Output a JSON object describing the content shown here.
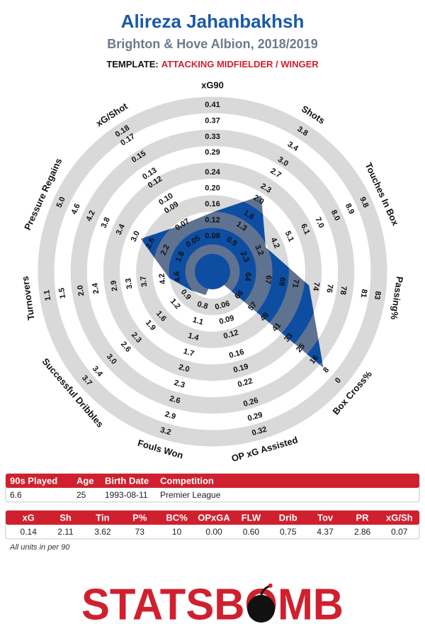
{
  "header": {
    "title": "Alireza Jahanbakhsh",
    "subtitle": "Brighton & Hove Albion, 2018/2019",
    "template_label": "TEMPLATE:",
    "template": "ATTACKING MIDFIELDER / WINGER"
  },
  "chart_data": {
    "type": "radar",
    "axes": [
      {
        "name": "xG90",
        "value": 0.14,
        "ticks": [
          0.08,
          0.12,
          0.16,
          {
            "value": 0.2,
            "label": "0.20"
          },
          0.24,
          0.29,
          0.33,
          0.37,
          0.41
        ]
      },
      {
        "name": "Shots",
        "value": 2.11,
        "ticks": [
          0.9,
          1.3,
          1.6,
          {
            "value": 2,
            "label": "2.0"
          },
          2.3,
          2.7,
          {
            "value": 3,
            "label": "3.0"
          },
          3.4,
          3.8
        ]
      },
      {
        "name": "Touches In Box",
        "value": 3.62,
        "ticks": [
          2.3,
          3.2,
          4.2,
          5.1,
          6.1,
          {
            "value": 7,
            "label": "7.0"
          },
          {
            "value": 8,
            "label": "8.0"
          },
          8.9,
          9.8
        ]
      },
      {
        "name": "Passing%",
        "value": 73,
        "ticks": [
          64,
          67,
          69,
          71,
          74,
          76,
          78,
          81,
          83
        ]
      },
      {
        "name": "Box Cross%",
        "value": 10,
        "ticks": [
          66,
          57,
          49,
          41,
          33,
          25,
          16,
          8,
          0
        ]
      },
      {
        "name": "OP xG Assisted",
        "value": 0,
        "ticks": [
          0.06,
          0.09,
          0.12,
          0.16,
          0.19,
          0.22,
          0.26,
          0.29,
          0.32
        ]
      },
      {
        "name": "Fouls Won",
        "value": 0.6,
        "ticks": [
          0.8,
          1.1,
          1.4,
          1.7,
          {
            "value": 2,
            "label": "2.0"
          },
          2.3,
          2.6,
          2.9,
          3.2
        ]
      },
      {
        "name": "Successful Dribbles",
        "value": 0.75,
        "ticks": [
          0.9,
          1.2,
          1.6,
          1.9,
          2.3,
          2.6,
          {
            "value": 3,
            "label": "3.0"
          },
          3.4,
          3.7
        ]
      },
      {
        "name": "Turnovers",
        "value": 4.37,
        "ticks": [
          4.6,
          4.2,
          3.7,
          3.3,
          2.9,
          2.4,
          {
            "value": 2,
            "label": "2.0"
          },
          1.5,
          1.1
        ]
      },
      {
        "name": "Pressure Regains",
        "value": 2.86,
        "ticks": [
          1.8,
          2.2,
          2.6,
          {
            "value": 3,
            "label": "3.0"
          },
          3.4,
          3.8,
          4.2,
          4.6,
          {
            "value": 5,
            "label": "5.0"
          }
        ]
      },
      {
        "name": "xG/Shot",
        "value": 0.07,
        "ticks": [
          0.05,
          0.07,
          0.09,
          {
            "value": 0.1,
            "label": "0.10"
          },
          0.12,
          0.13,
          0.15,
          0.17,
          0.18
        ]
      }
    ]
  },
  "info_table": {
    "columns": [
      "90s Played",
      "Age",
      "Birth Date",
      "Competition"
    ],
    "rows": [
      [
        "6.6",
        "25",
        "1993-08-11",
        "Premier League"
      ]
    ]
  },
  "stats_table": {
    "columns": [
      "xG",
      "Sh",
      "Tin",
      "P%",
      "BC%",
      "OPxGA",
      "FLW",
      "Drib",
      "Tov",
      "PR",
      "xG/Sh"
    ],
    "rows": [
      [
        "0.14",
        "2.11",
        "3.62",
        "73",
        "10",
        "0.00",
        "0.60",
        "0.75",
        "4.37",
        "2.86",
        "0.07"
      ]
    ]
  },
  "footnote": "All units in per 90",
  "logo": "STATSBOMB"
}
